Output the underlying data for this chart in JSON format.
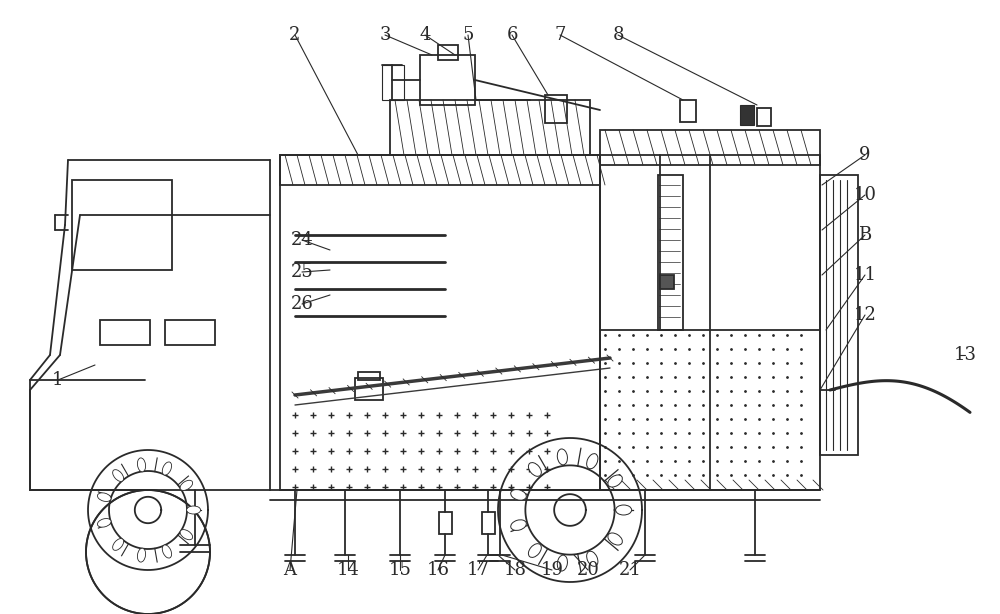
{
  "bg_color": "#ffffff",
  "line_color": "#2a2a2a",
  "label_color": "#2a2a2a",
  "fig_width": 10.0,
  "fig_height": 6.14,
  "dpi": 100
}
